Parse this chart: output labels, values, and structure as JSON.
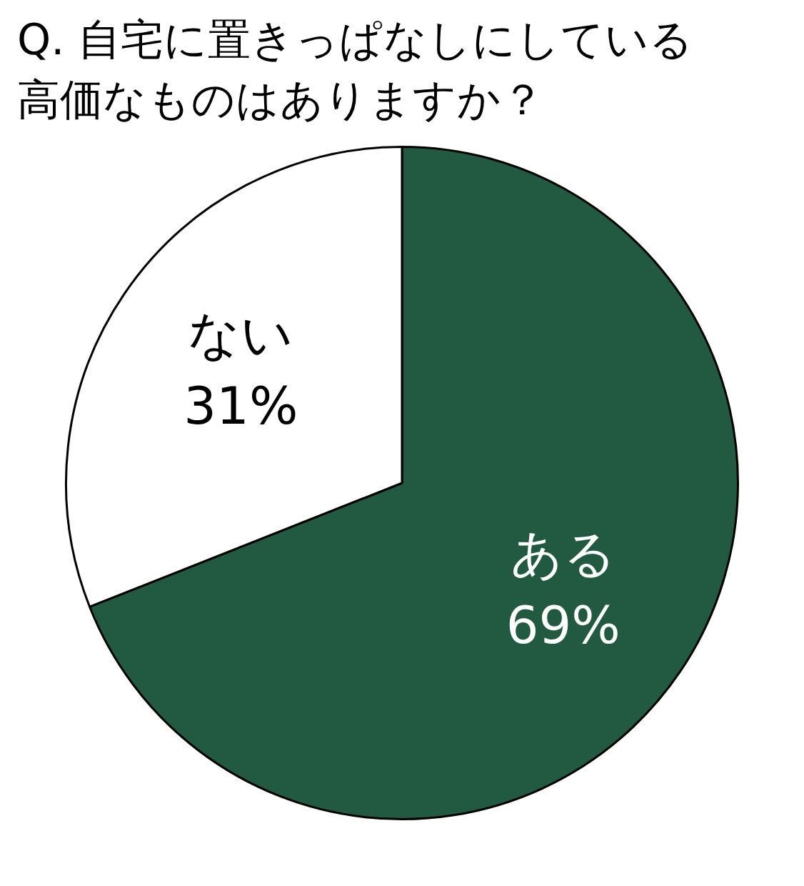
{
  "chart_data": {
    "type": "pie",
    "title": "Q. 自宅に置きっぱなしにしている高価なものはありますか？",
    "categories": [
      "ある",
      "ない"
    ],
    "values": [
      69,
      31
    ],
    "colors": [
      "#215a40",
      "#ffffff"
    ],
    "value_labels": [
      "69%",
      "31%"
    ],
    "legend": false
  }
}
